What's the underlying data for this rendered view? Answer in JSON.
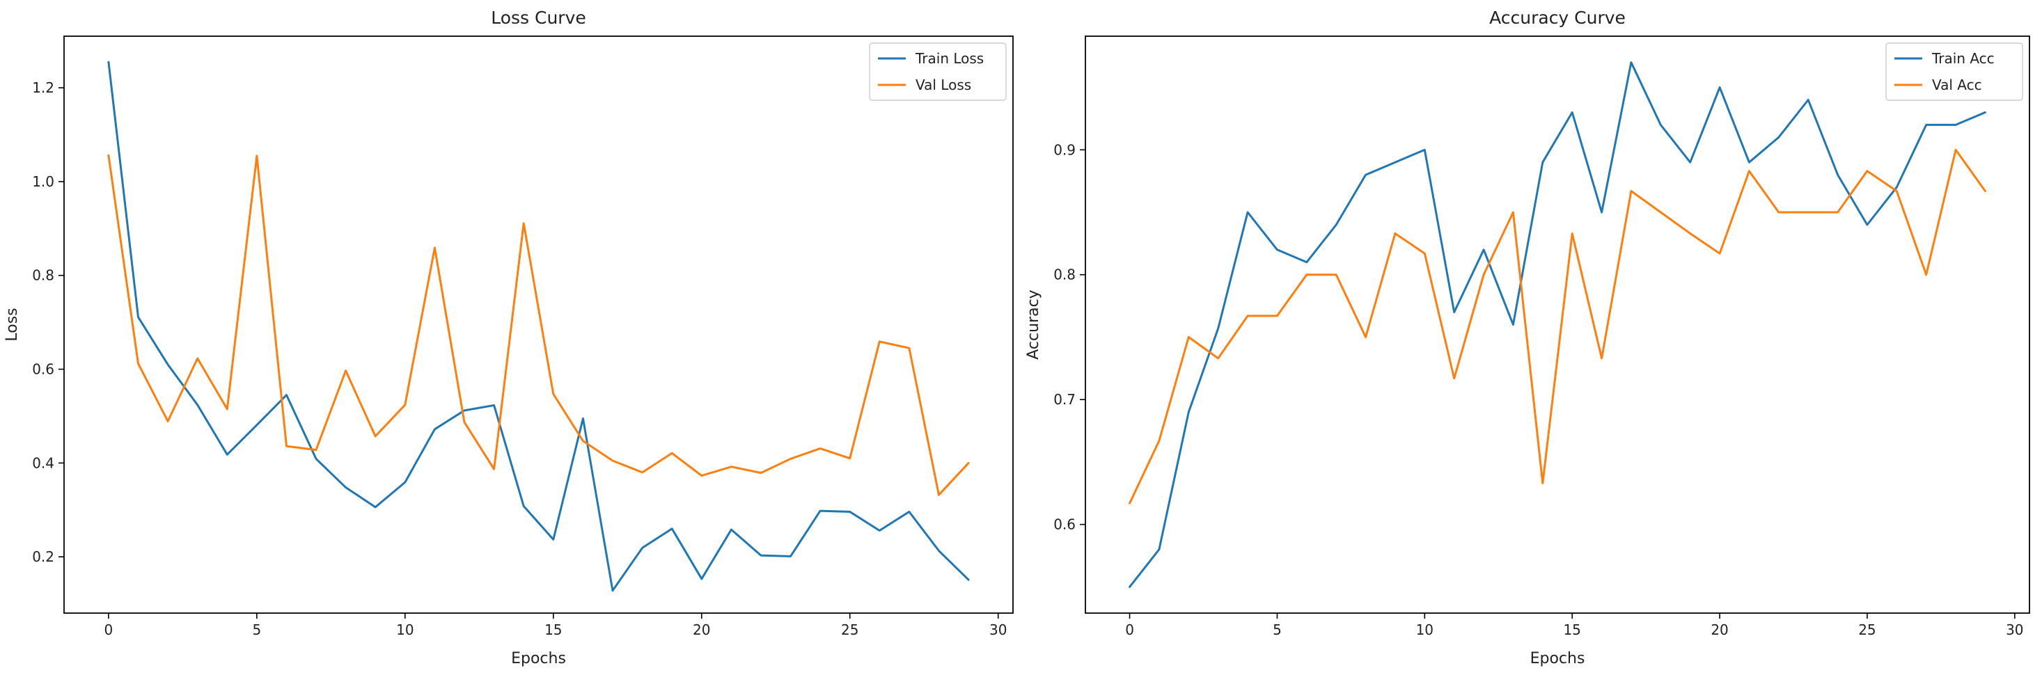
{
  "colors": {
    "train": "#1f77b4",
    "val": "#ff7f0e"
  },
  "chart_data": [
    {
      "type": "line",
      "title": "Loss Curve",
      "xlabel": "Epochs",
      "ylabel": "Loss",
      "xlim": [
        -1.5,
        30.5
      ],
      "ylim": [
        0.08,
        1.31
      ],
      "xticks": [
        0,
        5,
        10,
        15,
        20,
        25,
        30
      ],
      "yticks": [
        0.2,
        0.4,
        0.6,
        0.8,
        1.0,
        1.2
      ],
      "ytick_labels": [
        "0.2",
        "0.4",
        "0.6",
        "0.8",
        "1.0",
        "1.2"
      ],
      "grid": false,
      "legend_position": "top-right",
      "x": [
        0,
        1,
        2,
        3,
        4,
        5,
        6,
        7,
        8,
        9,
        10,
        11,
        12,
        13,
        14,
        15,
        16,
        17,
        18,
        19,
        20,
        21,
        22,
        23,
        24,
        25,
        26,
        27,
        28,
        29
      ],
      "series": [
        {
          "name": "Train Loss",
          "color_key": "train",
          "values": [
            1.255,
            0.711,
            0.61,
            0.524,
            0.418,
            0.481,
            0.545,
            0.409,
            0.348,
            0.306,
            0.359,
            0.472,
            0.512,
            0.523,
            0.308,
            0.237,
            0.495,
            0.128,
            0.219,
            0.26,
            0.153,
            0.258,
            0.203,
            0.201,
            0.298,
            0.296,
            0.256,
            0.296,
            0.213,
            0.151
          ]
        },
        {
          "name": "Val Loss",
          "color_key": "val",
          "values": [
            1.056,
            0.612,
            0.489,
            0.623,
            0.515,
            1.055,
            0.436,
            0.428,
            0.597,
            0.457,
            0.524,
            0.859,
            0.487,
            0.387,
            0.911,
            0.547,
            0.447,
            0.405,
            0.38,
            0.421,
            0.373,
            0.392,
            0.379,
            0.409,
            0.431,
            0.41,
            0.659,
            0.645,
            0.332,
            0.4
          ]
        }
      ]
    },
    {
      "type": "line",
      "title": "Accuracy Curve",
      "xlabel": "Epochs",
      "ylabel": "Accuracy",
      "xlim": [
        -1.5,
        30.5
      ],
      "ylim": [
        0.529,
        0.991
      ],
      "xticks": [
        0,
        5,
        10,
        15,
        20,
        25,
        30
      ],
      "yticks": [
        0.6,
        0.7,
        0.8,
        0.9
      ],
      "ytick_labels": [
        "0.6",
        "0.7",
        "0.8",
        "0.9"
      ],
      "grid": false,
      "legend_position": "top-right",
      "x": [
        0,
        1,
        2,
        3,
        4,
        5,
        6,
        7,
        8,
        9,
        10,
        11,
        12,
        13,
        14,
        15,
        16,
        17,
        18,
        19,
        20,
        21,
        22,
        23,
        24,
        25,
        26,
        27,
        28,
        29
      ],
      "series": [
        {
          "name": "Train Acc",
          "color_key": "train",
          "values": [
            0.55,
            0.58,
            0.69,
            0.757,
            0.85,
            0.82,
            0.81,
            0.84,
            0.88,
            0.89,
            0.9,
            0.77,
            0.82,
            0.76,
            0.89,
            0.93,
            0.85,
            0.97,
            0.92,
            0.89,
            0.95,
            0.89,
            0.91,
            0.94,
            0.88,
            0.84,
            0.87,
            0.92,
            0.92,
            0.93
          ]
        },
        {
          "name": "Val Acc",
          "color_key": "val",
          "values": [
            0.617,
            0.667,
            0.75,
            0.733,
            0.767,
            0.767,
            0.8,
            0.8,
            0.75,
            0.833,
            0.817,
            0.717,
            0.8,
            0.85,
            0.633,
            0.833,
            0.733,
            0.867,
            0.85,
            0.833,
            0.817,
            0.883,
            0.85,
            0.85,
            0.85,
            0.883,
            0.867,
            0.8,
            0.9,
            0.867
          ]
        }
      ]
    }
  ]
}
